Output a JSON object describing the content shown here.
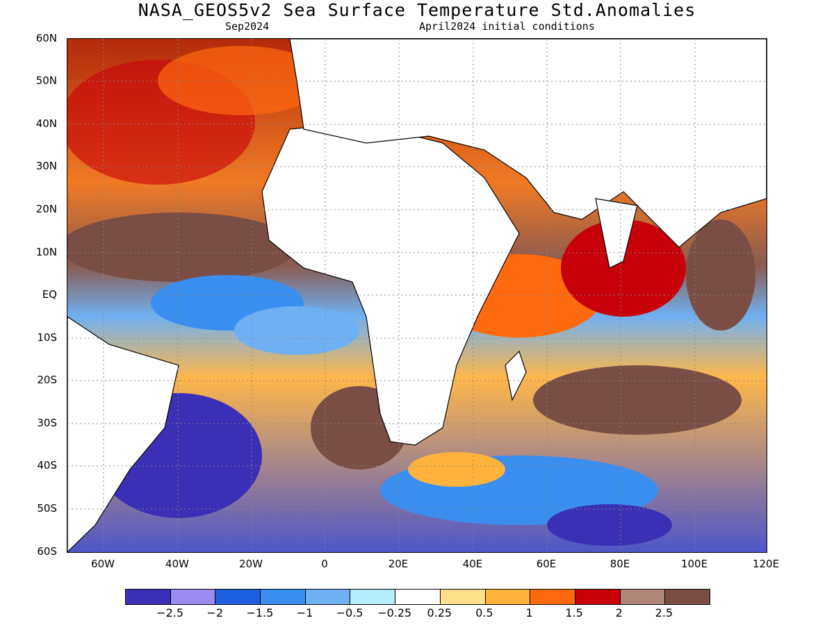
{
  "header": {
    "title": "NASA_GEOS5v2 Sea Surface Temperature Std.Anomalies",
    "month": "Sep2024",
    "init": "April2024 initial conditions"
  },
  "axes": {
    "lat_labels": [
      "60N",
      "50N",
      "40N",
      "30N",
      "20N",
      "10N",
      "EQ",
      "10S",
      "20S",
      "30S",
      "40S",
      "50S",
      "60S"
    ],
    "lon_labels": [
      "60W",
      "40W",
      "20W",
      "0",
      "20E",
      "40E",
      "60E",
      "80E",
      "100E",
      "120E"
    ]
  },
  "colorbar": {
    "colors": [
      "#3a2fb5",
      "#9c8cf2",
      "#1e5fe0",
      "#3a8ef0",
      "#6fb0f2",
      "#b4ecfa",
      "#ffffff",
      "#ffe08a",
      "#ffb33c",
      "#ff6a10",
      "#c8000a",
      "#b08579",
      "#7a4e44"
    ],
    "labels": [
      "−2.5",
      "−2",
      "−1.5",
      "−1",
      "−0.5",
      "−0.25",
      "0.25",
      "0.5",
      "1",
      "1.5",
      "2",
      "2.5"
    ]
  },
  "map": {
    "land_color": "#ffffff",
    "coast_color": "#000000"
  }
}
